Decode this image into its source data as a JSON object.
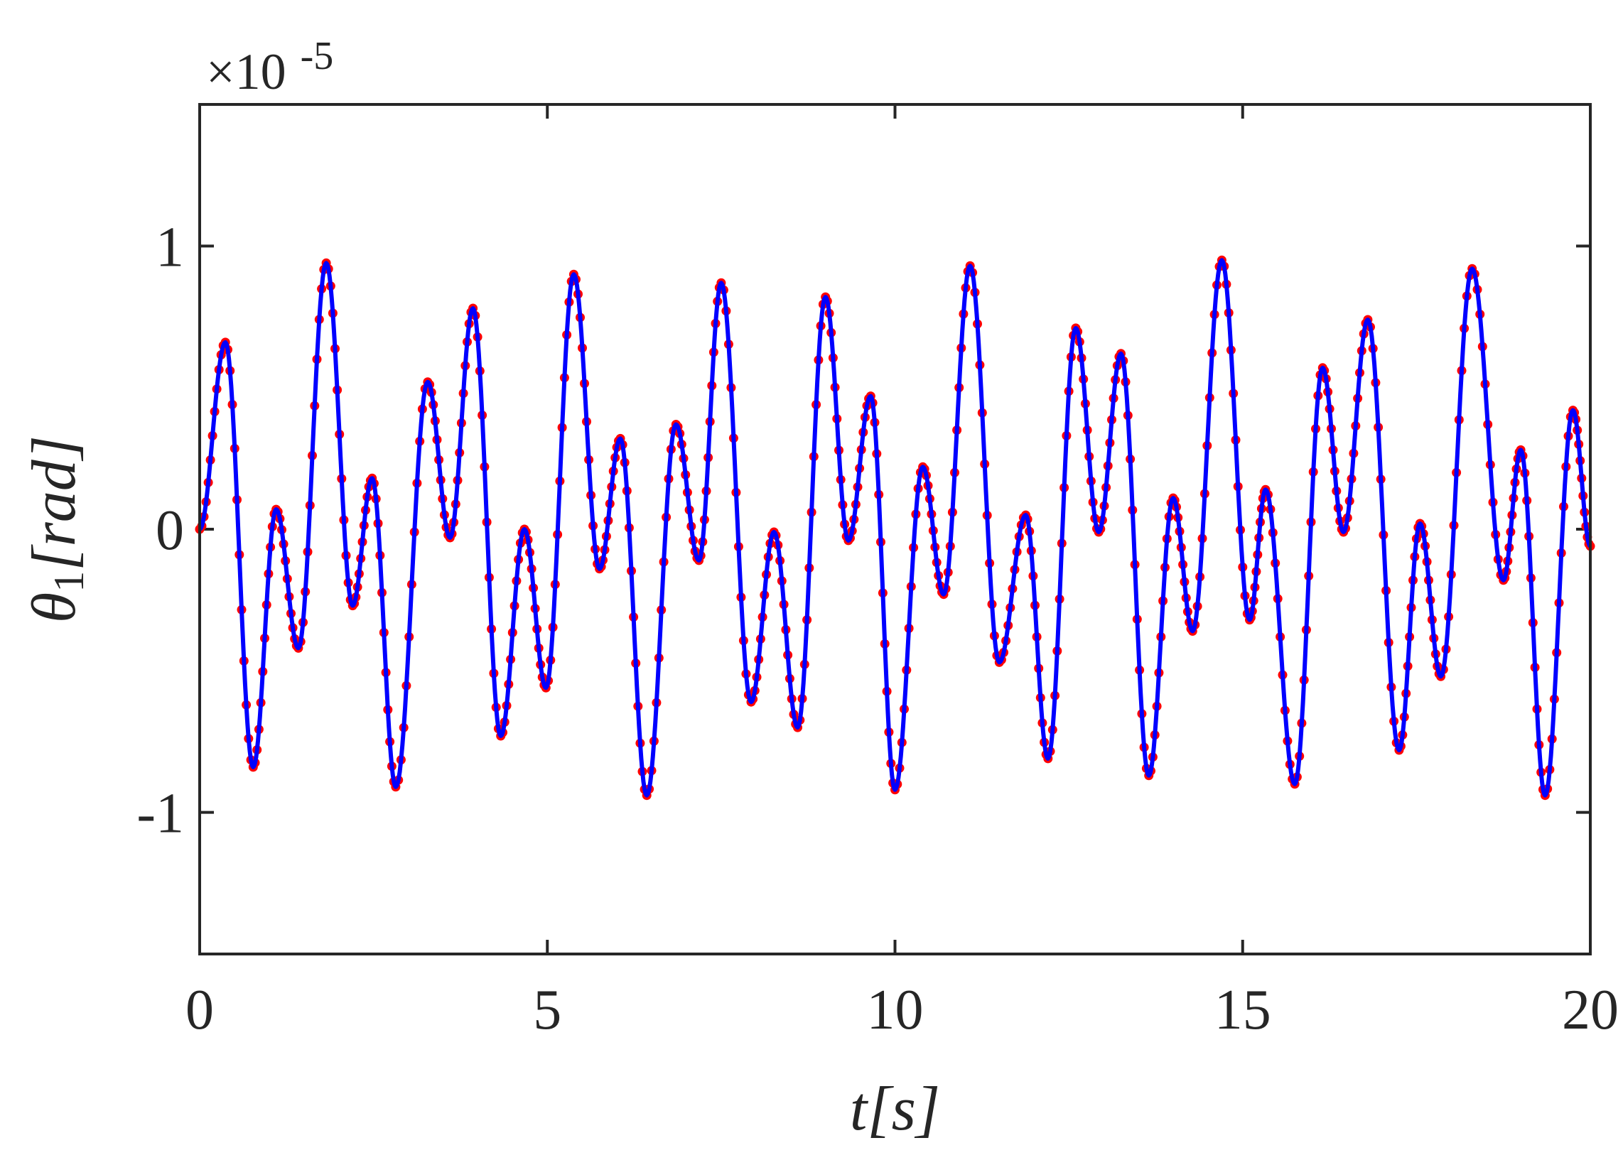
{
  "chart_data": {
    "type": "line",
    "title": "",
    "xlabel": "t[s]",
    "ylabel": "θ1[rad]",
    "ylabel_symbol": "θ",
    "ylabel_subscript": "1",
    "ylabel_unit": "[rad]",
    "y_multiplier_label": "×10",
    "y_multiplier_exponent": "-5",
    "xlim": [
      0,
      20
    ],
    "ylim": [
      -1.5,
      1.5
    ],
    "xticks": [
      0,
      5,
      10,
      15,
      20
    ],
    "xtick_labels": [
      "0",
      "5",
      "10",
      "15",
      "20"
    ],
    "yticks": [
      -1,
      0,
      1
    ],
    "ytick_labels": [
      "-1",
      "0",
      "1"
    ],
    "grid": false,
    "box": true,
    "series": [
      {
        "style": "solid-line",
        "color": "#0000ff",
        "x": [
          0,
          0.37,
          0.77,
          1.1,
          1.42,
          1.82,
          2.2,
          2.48,
          2.82,
          3.28,
          3.6,
          3.93,
          4.33,
          4.67,
          4.98,
          5.38,
          5.75,
          6.05,
          6.43,
          6.85,
          7.18,
          7.5,
          7.93,
          8.26,
          8.6,
          9.0,
          9.33,
          9.65,
          10.0,
          10.4,
          10.7,
          11.08,
          11.5,
          11.88,
          12.2,
          12.6,
          12.93,
          13.25,
          13.65,
          14.0,
          14.28,
          14.7,
          15.1,
          15.33,
          15.75,
          16.15,
          16.45,
          16.8,
          17.25,
          17.55,
          17.85,
          18.3,
          18.75,
          19.0,
          19.35,
          19.75,
          20.0
        ],
        "y": [
          0,
          0.66,
          -0.84,
          0.07,
          -0.42,
          0.94,
          -0.27,
          0.18,
          -0.91,
          0.52,
          -0.03,
          0.78,
          -0.73,
          0.0,
          -0.56,
          0.9,
          -0.14,
          0.32,
          -0.94,
          0.37,
          -0.11,
          0.87,
          -0.61,
          -0.01,
          -0.7,
          0.82,
          -0.04,
          0.47,
          -0.92,
          0.22,
          -0.23,
          0.93,
          -0.47,
          0.05,
          -0.81,
          0.71,
          -0.01,
          0.62,
          -0.87,
          0.11,
          -0.36,
          0.95,
          -0.32,
          0.14,
          -0.9,
          0.57,
          -0.01,
          0.74,
          -0.78,
          0.02,
          -0.52,
          0.92,
          -0.18,
          0.28,
          -0.94,
          0.42,
          -0.06
        ]
      },
      {
        "style": "dotted-markers",
        "color": "#ff0000",
        "x": [
          0,
          0.37,
          0.77,
          1.1,
          1.42,
          1.82,
          2.2,
          2.48,
          2.82,
          3.28,
          3.6,
          3.93,
          4.33,
          4.67,
          4.98,
          5.38,
          5.75,
          6.05,
          6.43,
          6.85,
          7.18,
          7.5,
          7.93,
          8.26,
          8.6,
          9.0,
          9.33,
          9.65,
          10.0,
          10.4,
          10.7,
          11.08,
          11.5,
          11.88,
          12.2,
          12.6,
          12.93,
          13.25,
          13.65,
          14.0,
          14.28,
          14.7,
          15.1,
          15.33,
          15.75,
          16.15,
          16.45,
          16.8,
          17.25,
          17.55,
          17.85,
          18.3,
          18.75,
          19.0,
          19.35,
          19.75,
          20.0
        ],
        "y": [
          0,
          0.66,
          -0.84,
          0.07,
          -0.42,
          0.94,
          -0.27,
          0.18,
          -0.91,
          0.52,
          -0.03,
          0.78,
          -0.73,
          0.0,
          -0.56,
          0.9,
          -0.14,
          0.32,
          -0.94,
          0.37,
          -0.11,
          0.87,
          -0.61,
          -0.01,
          -0.7,
          0.82,
          -0.04,
          0.47,
          -0.92,
          0.22,
          -0.23,
          0.93,
          -0.47,
          0.05,
          -0.81,
          0.71,
          -0.01,
          0.62,
          -0.87,
          0.11,
          -0.36,
          0.95,
          -0.32,
          0.14,
          -0.9,
          0.57,
          -0.01,
          0.74,
          -0.78,
          0.02,
          -0.52,
          0.92,
          -0.18,
          0.28,
          -0.94,
          0.42,
          -0.06
        ]
      }
    ]
  }
}
